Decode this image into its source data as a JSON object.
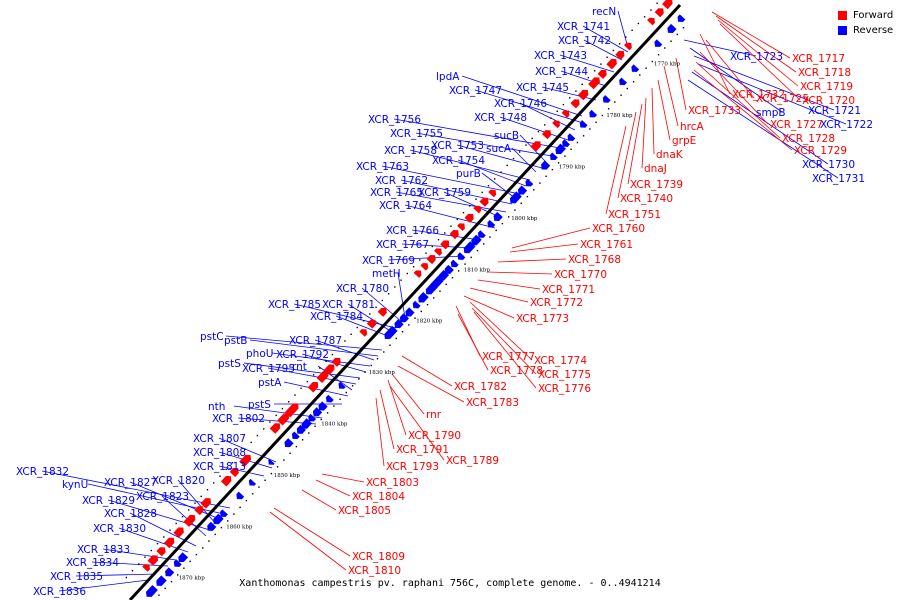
{
  "caption": "Xanthomonas campestris pv. raphani 756C, complete genome. - 0..4941214",
  "legend": [
    {
      "label": "Forward",
      "color": "#ff0000"
    },
    {
      "label": "Reverse",
      "color": "#0000ff"
    }
  ],
  "colors": {
    "forward": "#ff0000",
    "reverse": "#0000ff",
    "axis": "#000000"
  },
  "ticks": [
    "1770 kbp",
    "1780 kbp",
    "1790 kbp",
    "1800 kbp",
    "1810 kbp",
    "1820 kbp",
    "1830 kbp",
    "1840 kbp",
    "1850 kbp",
    "1860 kbp",
    "1870 kbp"
  ],
  "reverse_labels": [
    "recN",
    "XCR_1741",
    "XCR_1742",
    "XCR_1743",
    "XCR_1744",
    "XCR_1745",
    "lpdA",
    "XCR_1747",
    "XCR_1746",
    "XCR_1748",
    "XCR_1756",
    "XCR_1755",
    "sucB",
    "XCR_1753",
    "sucA",
    "XCR_1758",
    "XCR_1754",
    "XCR_1763",
    "purB",
    "XCR_1762",
    "XCR_1765",
    "XCR_1759",
    "XCR_1764",
    "XCR_1766",
    "XCR_1767",
    "XCR_1769",
    "metH",
    "XCR_1780",
    "XCR_1785",
    "XCR_1781",
    "XCR_1784",
    "pstC",
    "pstB",
    "XCR_1787",
    "phoU",
    "XCR_1792",
    "pstS",
    "XCR_1795",
    "rnt",
    "pstA",
    "pstS",
    "nth",
    "XCR_1802",
    "XCR_1807",
    "XCR_1808",
    "XCR_1813",
    "XCR_1832",
    "kynU",
    "XCR_1827",
    "XCR_1820",
    "XCR_1829",
    "XCR_1823",
    "XCR_1828",
    "XCR_1830",
    "XCR_1833",
    "XCR_1834",
    "XCR_1835",
    "XCR_1836",
    "XCR_1723",
    "smpB",
    "XCR_1721",
    "XCR_1722",
    "XCR_1730",
    "XCR_1731"
  ],
  "forward_labels": [
    "XCR_1717",
    "XCR_1718",
    "XCR_1719",
    "XCR_1720",
    "XCR_1732",
    "XCR_1725",
    "hrcA",
    "XCR_1733",
    "XCR_1727",
    "grpE",
    "XCR_1728",
    "dnaK",
    "XCR_1729",
    "dnaJ",
    "XCR_1739",
    "XCR_1740",
    "XCR_1751",
    "XCR_1760",
    "XCR_1761",
    "XCR_1768",
    "XCR_1770",
    "XCR_1771",
    "XCR_1772",
    "XCR_1773",
    "XCR_1777",
    "XCR_1774",
    "XCR_1778",
    "XCR_1775",
    "XCR_1776",
    "XCR_1782",
    "XCR_1783",
    "rnr",
    "XCR_1790",
    "XCR_1791",
    "XCR_1789",
    "XCR_1793",
    "XCR_1803",
    "XCR_1804",
    "XCR_1805",
    "XCR_1809",
    "XCR_1810"
  ]
}
